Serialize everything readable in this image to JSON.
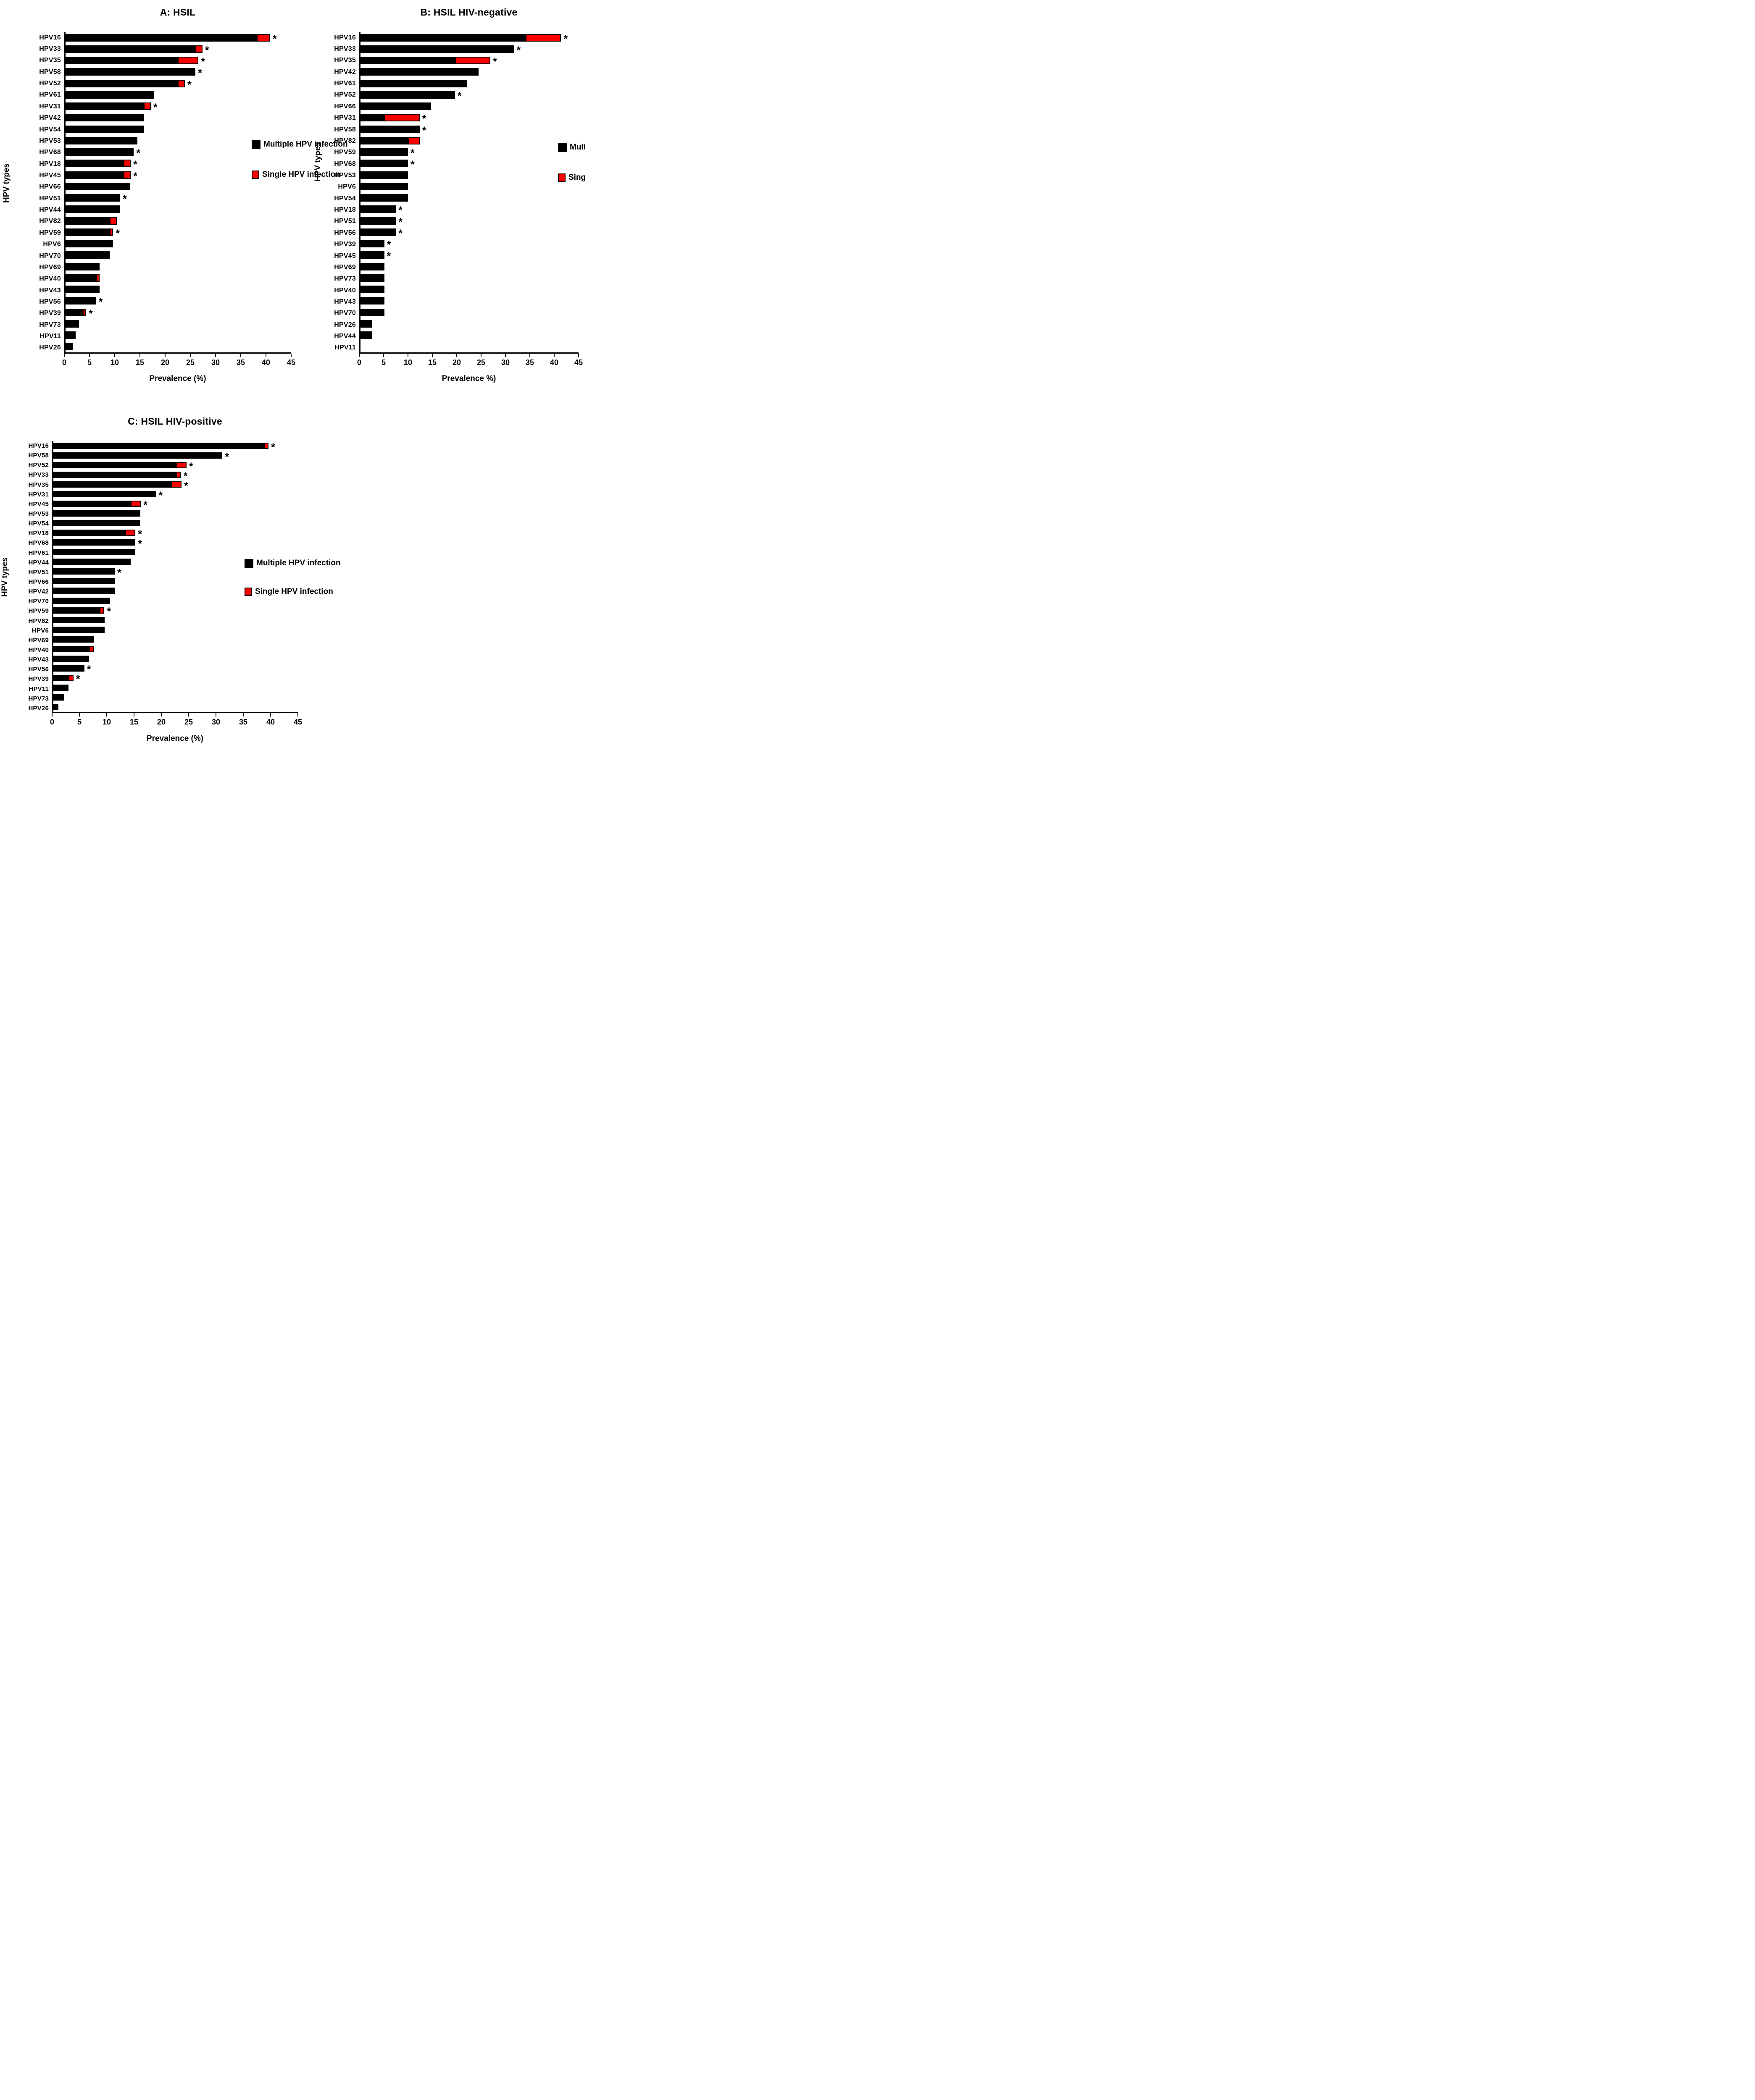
{
  "figure_background": "#ffffff",
  "colors": {
    "multiple_hpv": "#000000",
    "single_hpv": "#fb0000",
    "axis": "#000000",
    "text": "#000000"
  },
  "significance_marker": "*",
  "legend": {
    "items": [
      {
        "key": "multiple",
        "label": "Multiple HPV infection",
        "swatch_color": "#000000"
      },
      {
        "key": "single",
        "label": "Single HPV infection",
        "swatch_color": "#fb0000",
        "swatch_border": "#000000"
      }
    ]
  },
  "chart_data": [
    {
      "id": "A",
      "type": "bar",
      "orientation": "horizontal",
      "title": "A: HSIL",
      "xlabel": "Prevalence (%)",
      "ylabel": "HPV types",
      "xlim": [
        0,
        45
      ],
      "xticks": [
        0,
        5,
        10,
        15,
        20,
        25,
        30,
        35,
        40,
        45
      ],
      "stacked_series": [
        "Multiple HPV infection",
        "Single HPV infection"
      ],
      "legend_position": "inside-right",
      "grid": false,
      "bars": [
        {
          "label": "HPV16",
          "multiple": 38.1,
          "single": 2.7,
          "star": true
        },
        {
          "label": "HPV33",
          "multiple": 25.9,
          "single": 1.4,
          "star": true
        },
        {
          "label": "HPV35",
          "multiple": 22.4,
          "single": 4.1,
          "star": true
        },
        {
          "label": "HPV58",
          "multiple": 25.9,
          "single": 0,
          "star": true
        },
        {
          "label": "HPV52",
          "multiple": 22.4,
          "single": 1.4,
          "star": true
        },
        {
          "label": "HPV61",
          "multiple": 17.7,
          "single": 0,
          "star": false
        },
        {
          "label": "HPV31",
          "multiple": 15.6,
          "single": 1.4,
          "star": true
        },
        {
          "label": "HPV42",
          "multiple": 15.6,
          "single": 0,
          "star": false
        },
        {
          "label": "HPV54",
          "multiple": 15.6,
          "single": 0,
          "star": false
        },
        {
          "label": "HPV53",
          "multiple": 14.3,
          "single": 0,
          "star": false
        },
        {
          "label": "HPV68",
          "multiple": 13.6,
          "single": 0,
          "star": true
        },
        {
          "label": "HPV18",
          "multiple": 11.6,
          "single": 1.4,
          "star": true
        },
        {
          "label": "HPV45",
          "multiple": 11.6,
          "single": 1.4,
          "star": true
        },
        {
          "label": "HPV66",
          "multiple": 12.9,
          "single": 0,
          "star": false
        },
        {
          "label": "HPV51",
          "multiple": 10.9,
          "single": 0,
          "star": true
        },
        {
          "label": "HPV44",
          "multiple": 10.9,
          "single": 0,
          "star": false
        },
        {
          "label": "HPV82",
          "multiple": 8.8,
          "single": 1.4,
          "star": false
        },
        {
          "label": "HPV59",
          "multiple": 8.8,
          "single": 0.7,
          "star": true
        },
        {
          "label": "HPV6",
          "multiple": 9.5,
          "single": 0,
          "star": false
        },
        {
          "label": "HPV70",
          "multiple": 8.8,
          "single": 0,
          "star": false
        },
        {
          "label": "HPV69",
          "multiple": 6.8,
          "single": 0,
          "star": false
        },
        {
          "label": "HPV40",
          "multiple": 6.1,
          "single": 0.7,
          "star": false
        },
        {
          "label": "HPV43",
          "multiple": 6.8,
          "single": 0,
          "star": false
        },
        {
          "label": "HPV56",
          "multiple": 6.1,
          "single": 0,
          "star": true
        },
        {
          "label": "HPV39",
          "multiple": 3.4,
          "single": 0.7,
          "star": true
        },
        {
          "label": "HPV73",
          "multiple": 2.7,
          "single": 0,
          "star": false
        },
        {
          "label": "HPV11",
          "multiple": 2.0,
          "single": 0,
          "star": false
        },
        {
          "label": "HPV26",
          "multiple": 1.4,
          "single": 0,
          "star": false
        }
      ]
    },
    {
      "id": "B",
      "type": "bar",
      "orientation": "horizontal",
      "title": "B: HSIL HIV-negative",
      "xlabel": "Prevalence %)",
      "ylabel": "HPV types",
      "xlim": [
        0,
        45
      ],
      "xticks": [
        0,
        5,
        10,
        15,
        20,
        25,
        30,
        35,
        40,
        45
      ],
      "stacked_series": [
        "Multiple HPV infection",
        "Single HPV infection"
      ],
      "legend_position": "inside-right",
      "grid": false,
      "bars": [
        {
          "label": "HPV16",
          "multiple": 34.1,
          "single": 7.3,
          "star": true
        },
        {
          "label": "HPV33",
          "multiple": 31.7,
          "single": 0,
          "star": true
        },
        {
          "label": "HPV35",
          "multiple": 19.5,
          "single": 7.3,
          "star": true
        },
        {
          "label": "HPV42",
          "multiple": 24.4,
          "single": 0,
          "star": false
        },
        {
          "label": "HPV61",
          "multiple": 22.0,
          "single": 0,
          "star": false
        },
        {
          "label": "HPV52",
          "multiple": 19.5,
          "single": 0,
          "star": true
        },
        {
          "label": "HPV66",
          "multiple": 14.6,
          "single": 0,
          "star": false
        },
        {
          "label": "HPV31",
          "multiple": 4.9,
          "single": 7.3,
          "star": true
        },
        {
          "label": "HPV58",
          "multiple": 12.2,
          "single": 0,
          "star": true
        },
        {
          "label": "HPV82",
          "multiple": 9.8,
          "single": 2.4,
          "star": false
        },
        {
          "label": "HPV59",
          "multiple": 9.8,
          "single": 0,
          "star": true
        },
        {
          "label": "HPV68",
          "multiple": 9.8,
          "single": 0,
          "star": true
        },
        {
          "label": "HPV53",
          "multiple": 9.8,
          "single": 0,
          "star": false
        },
        {
          "label": "HPV6",
          "multiple": 9.8,
          "single": 0,
          "star": false
        },
        {
          "label": "HPV54",
          "multiple": 9.8,
          "single": 0,
          "star": false
        },
        {
          "label": "HPV18",
          "multiple": 7.3,
          "single": 0,
          "star": true
        },
        {
          "label": "HPV51",
          "multiple": 7.3,
          "single": 0,
          "star": true
        },
        {
          "label": "HPV56",
          "multiple": 7.3,
          "single": 0,
          "star": true
        },
        {
          "label": "HPV39",
          "multiple": 4.9,
          "single": 0,
          "star": true
        },
        {
          "label": "HPV45",
          "multiple": 4.9,
          "single": 0,
          "star": true
        },
        {
          "label": "HPV69",
          "multiple": 4.9,
          "single": 0,
          "star": false
        },
        {
          "label": "HPV73",
          "multiple": 4.9,
          "single": 0,
          "star": false
        },
        {
          "label": "HPV40",
          "multiple": 4.9,
          "single": 0,
          "star": false
        },
        {
          "label": "HPV43",
          "multiple": 4.9,
          "single": 0,
          "star": false
        },
        {
          "label": "HPV70",
          "multiple": 4.9,
          "single": 0,
          "star": false
        },
        {
          "label": "HPV26",
          "multiple": 2.4,
          "single": 0,
          "star": false
        },
        {
          "label": "HPV44",
          "multiple": 2.4,
          "single": 0,
          "star": false
        },
        {
          "label": "HPV11",
          "multiple": 0,
          "single": 0,
          "star": false
        }
      ]
    },
    {
      "id": "C",
      "type": "bar",
      "orientation": "horizontal",
      "title": "C: HSIL HIV-positive",
      "xlabel": "Prevalence (%)",
      "ylabel": "HPV types",
      "xlim": [
        0,
        45
      ],
      "xticks": [
        0,
        5,
        10,
        15,
        20,
        25,
        30,
        35,
        40,
        45
      ],
      "stacked_series": [
        "Multiple HPV infection",
        "Single HPV infection"
      ],
      "legend_position": "inside-right",
      "grid": false,
      "bars": [
        {
          "label": "HPV16",
          "multiple": 38.7,
          "single": 0.9,
          "star": true
        },
        {
          "label": "HPV58",
          "multiple": 31.1,
          "single": 0,
          "star": true
        },
        {
          "label": "HPV52",
          "multiple": 22.6,
          "single": 1.9,
          "star": true
        },
        {
          "label": "HPV33",
          "multiple": 22.6,
          "single": 0.9,
          "star": true
        },
        {
          "label": "HPV35",
          "multiple": 21.7,
          "single": 1.9,
          "star": true
        },
        {
          "label": "HPV31",
          "multiple": 18.9,
          "single": 0,
          "star": true
        },
        {
          "label": "HPV45",
          "multiple": 14.2,
          "single": 1.9,
          "star": true
        },
        {
          "label": "HPV53",
          "multiple": 16.0,
          "single": 0,
          "star": false
        },
        {
          "label": "HPV54",
          "multiple": 16.0,
          "single": 0,
          "star": false
        },
        {
          "label": "HPV18",
          "multiple": 13.2,
          "single": 1.9,
          "star": true
        },
        {
          "label": "HPV68",
          "multiple": 15.1,
          "single": 0,
          "star": true
        },
        {
          "label": "HPV61",
          "multiple": 15.1,
          "single": 0,
          "star": false
        },
        {
          "label": "HPV44",
          "multiple": 14.2,
          "single": 0,
          "star": false
        },
        {
          "label": "HPV51",
          "multiple": 11.3,
          "single": 0,
          "star": true
        },
        {
          "label": "HPV66",
          "multiple": 11.3,
          "single": 0,
          "star": false
        },
        {
          "label": "HPV42",
          "multiple": 11.3,
          "single": 0,
          "star": false
        },
        {
          "label": "HPV70",
          "multiple": 10.4,
          "single": 0,
          "star": false
        },
        {
          "label": "HPV59",
          "multiple": 8.5,
          "single": 0.9,
          "star": true
        },
        {
          "label": "HPV82",
          "multiple": 9.4,
          "single": 0,
          "star": false
        },
        {
          "label": "HPV6",
          "multiple": 9.4,
          "single": 0,
          "star": false
        },
        {
          "label": "HPV69",
          "multiple": 7.5,
          "single": 0,
          "star": false
        },
        {
          "label": "HPV40",
          "multiple": 6.6,
          "single": 0.9,
          "star": false
        },
        {
          "label": "HPV43",
          "multiple": 6.6,
          "single": 0,
          "star": false
        },
        {
          "label": "HPV56",
          "multiple": 5.7,
          "single": 0,
          "star": true
        },
        {
          "label": "HPV39",
          "multiple": 2.8,
          "single": 0.9,
          "star": true
        },
        {
          "label": "HPV11",
          "multiple": 2.8,
          "single": 0,
          "star": false
        },
        {
          "label": "HPV73",
          "multiple": 1.9,
          "single": 0,
          "star": false
        },
        {
          "label": "HPV26",
          "multiple": 0.9,
          "single": 0,
          "star": false
        }
      ]
    }
  ]
}
